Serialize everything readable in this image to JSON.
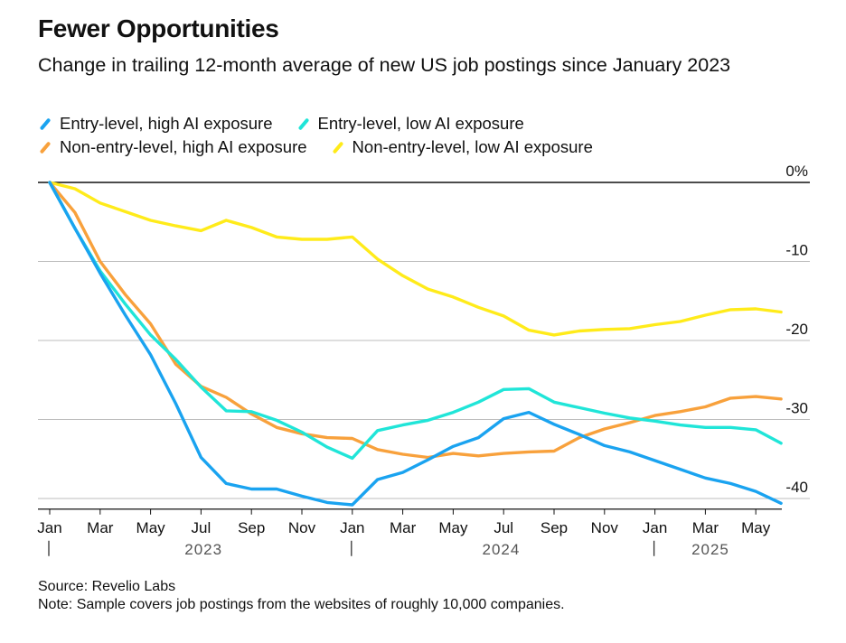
{
  "title": "Fewer Opportunities",
  "subtitle": "Change in trailing 12-month average of new US job postings since January 2023",
  "source": "Source: Revelio Labs",
  "note": "Note: Sample covers job postings from the websites of roughly 10,000 companies.",
  "chart_data": {
    "type": "line",
    "x_tick_labels": [
      "Jan",
      "Mar",
      "May",
      "Jul",
      "Sep",
      "Nov",
      "Jan",
      "Mar",
      "May",
      "Jul",
      "Sep",
      "Nov",
      "Jan",
      "Mar",
      "May"
    ],
    "x_year_labels": [
      "2023",
      "2024",
      "2025"
    ],
    "y_tick_labels": [
      "0%",
      "-10",
      "-20",
      "-30",
      "-40"
    ],
    "y_ticks": [
      0,
      -10,
      -20,
      -30,
      -40
    ],
    "ylim": [
      -41,
      0
    ],
    "x": [
      "2023-01",
      "2023-02",
      "2023-03",
      "2023-04",
      "2023-05",
      "2023-06",
      "2023-07",
      "2023-08",
      "2023-09",
      "2023-10",
      "2023-11",
      "2023-12",
      "2024-01",
      "2024-02",
      "2024-03",
      "2024-04",
      "2024-05",
      "2024-06",
      "2024-07",
      "2024-08",
      "2024-09",
      "2024-10",
      "2024-11",
      "2024-12",
      "2025-01",
      "2025-02",
      "2025-03",
      "2025-04",
      "2025-05",
      "2025-06"
    ],
    "series": [
      {
        "name": "Entry-level, high AI exposure",
        "color": "#1aa3f0",
        "values": [
          0,
          -5.8,
          -11.5,
          -16.8,
          -21.8,
          -28,
          -34.8,
          -38.1,
          -38.8,
          -38.8,
          -39.7,
          -40.5,
          -40.8,
          -37.6,
          -36.7,
          -35.1,
          -33.4,
          -32.3,
          -29.9,
          -29.1,
          -30.6,
          -31.9,
          -33.3,
          -34.1,
          -35.2,
          -36.3,
          -37.4,
          -38.1,
          -39.1,
          -40.6
        ]
      },
      {
        "name": "Entry-level, low AI exposure",
        "color": "#20e5d8",
        "values": [
          0,
          -5.8,
          -11.2,
          -15.4,
          -19.3,
          -22.4,
          -25.9,
          -28.9,
          -29,
          -30.1,
          -31.6,
          -33.5,
          -34.9,
          -31.4,
          -30.7,
          -30.1,
          -29.1,
          -27.8,
          -26.2,
          -26.1,
          -27.8,
          -28.5,
          -29.2,
          -29.8,
          -30.2,
          -30.7,
          -31,
          -31,
          -31.3,
          -33
        ]
      },
      {
        "name": "Non-entry-level, high AI exposure",
        "color": "#f8a13c",
        "values": [
          0,
          -3.8,
          -10,
          -14.2,
          -17.9,
          -23,
          -25.8,
          -27.2,
          -29.3,
          -31,
          -31.8,
          -32.3,
          -32.4,
          -33.8,
          -34.4,
          -34.8,
          -34.3,
          -34.6,
          -34.3,
          -34.1,
          -34,
          -32.3,
          -31.2,
          -30.4,
          -29.5,
          -29,
          -28.4,
          -27.3,
          -27.1,
          -27.4
        ]
      },
      {
        "name": "Non-entry-level, low AI exposure",
        "color": "#ffeb1a",
        "values": [
          0,
          -0.8,
          -2.6,
          -3.7,
          -4.8,
          -5.5,
          -6.1,
          -4.8,
          -5.7,
          -6.9,
          -7.2,
          -7.2,
          -6.9,
          -9.7,
          -11.8,
          -13.5,
          -14.5,
          -15.8,
          -16.9,
          -18.7,
          -19.3,
          -18.8,
          -18.6,
          -18.5,
          -18,
          -17.6,
          -16.8,
          -16.1,
          -16,
          -16.4
        ]
      }
    ]
  }
}
